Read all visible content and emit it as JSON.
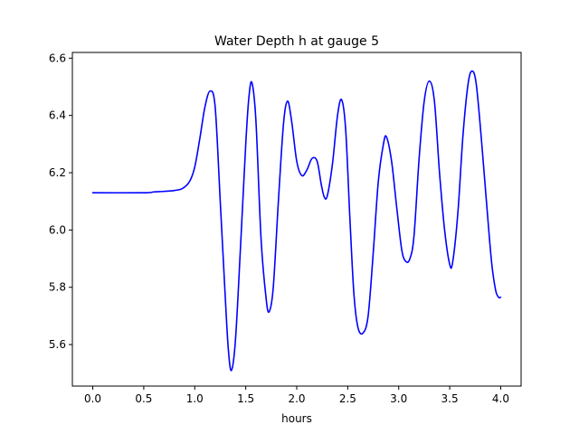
{
  "chart_data": {
    "type": "line",
    "title": "Water Depth h at gauge 5",
    "xlabel": "hours",
    "ylabel": "",
    "xlim": [
      -0.2,
      4.2
    ],
    "ylim": [
      5.455,
      6.62
    ],
    "xticks": [
      0.0,
      0.5,
      1.0,
      1.5,
      2.0,
      2.5,
      3.0,
      3.5,
      4.0
    ],
    "xtick_labels": [
      "0.0",
      "0.5",
      "1.0",
      "1.5",
      "2.0",
      "2.5",
      "3.0",
      "3.5",
      "4.0"
    ],
    "yticks": [
      5.6,
      5.8,
      6.0,
      6.2,
      6.4,
      6.6
    ],
    "ytick_labels": [
      "5.6",
      "5.8",
      "6.0",
      "6.2",
      "6.4",
      "6.6"
    ],
    "grid": false,
    "legend": "none",
    "series": [
      {
        "color": "#0000ff",
        "points": [
          [
            0.0,
            6.13
          ],
          [
            0.5,
            6.13
          ],
          [
            0.6,
            6.133
          ],
          [
            0.7,
            6.135
          ],
          [
            0.8,
            6.138
          ],
          [
            0.88,
            6.145
          ],
          [
            0.95,
            6.17
          ],
          [
            1.0,
            6.22
          ],
          [
            1.05,
            6.32
          ],
          [
            1.1,
            6.43
          ],
          [
            1.15,
            6.485
          ],
          [
            1.2,
            6.43
          ],
          [
            1.25,
            6.1
          ],
          [
            1.3,
            5.76
          ],
          [
            1.33,
            5.58
          ],
          [
            1.36,
            5.51
          ],
          [
            1.4,
            5.62
          ],
          [
            1.45,
            5.95
          ],
          [
            1.5,
            6.3
          ],
          [
            1.53,
            6.46
          ],
          [
            1.56,
            6.515
          ],
          [
            1.6,
            6.38
          ],
          [
            1.65,
            5.97
          ],
          [
            1.7,
            5.76
          ],
          [
            1.73,
            5.715
          ],
          [
            1.77,
            5.8
          ],
          [
            1.82,
            6.1
          ],
          [
            1.87,
            6.37
          ],
          [
            1.91,
            6.45
          ],
          [
            1.95,
            6.38
          ],
          [
            2.0,
            6.24
          ],
          [
            2.05,
            6.19
          ],
          [
            2.1,
            6.21
          ],
          [
            2.15,
            6.25
          ],
          [
            2.2,
            6.24
          ],
          [
            2.24,
            6.16
          ],
          [
            2.27,
            6.115
          ],
          [
            2.3,
            6.12
          ],
          [
            2.35,
            6.23
          ],
          [
            2.4,
            6.4
          ],
          [
            2.44,
            6.455
          ],
          [
            2.48,
            6.35
          ],
          [
            2.52,
            6.05
          ],
          [
            2.56,
            5.78
          ],
          [
            2.6,
            5.66
          ],
          [
            2.65,
            5.64
          ],
          [
            2.7,
            5.7
          ],
          [
            2.75,
            5.92
          ],
          [
            2.8,
            6.17
          ],
          [
            2.85,
            6.3
          ],
          [
            2.88,
            6.325
          ],
          [
            2.93,
            6.24
          ],
          [
            2.98,
            6.08
          ],
          [
            3.03,
            5.93
          ],
          [
            3.07,
            5.89
          ],
          [
            3.11,
            5.9
          ],
          [
            3.15,
            5.98
          ],
          [
            3.2,
            6.25
          ],
          [
            3.25,
            6.45
          ],
          [
            3.3,
            6.52
          ],
          [
            3.35,
            6.45
          ],
          [
            3.4,
            6.2
          ],
          [
            3.45,
            6.0
          ],
          [
            3.5,
            5.88
          ],
          [
            3.53,
            5.89
          ],
          [
            3.58,
            6.06
          ],
          [
            3.63,
            6.33
          ],
          [
            3.68,
            6.51
          ],
          [
            3.72,
            6.555
          ],
          [
            3.76,
            6.51
          ],
          [
            3.81,
            6.32
          ],
          [
            3.86,
            6.1
          ],
          [
            3.91,
            5.89
          ],
          [
            3.95,
            5.79
          ],
          [
            3.98,
            5.765
          ],
          [
            4.0,
            5.765
          ]
        ]
      }
    ]
  }
}
